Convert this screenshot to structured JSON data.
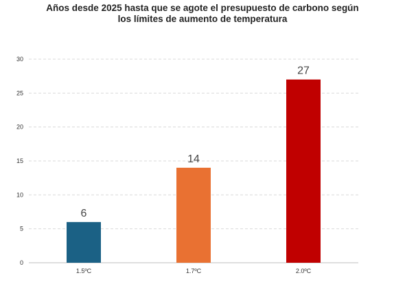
{
  "chart_data": {
    "type": "bar",
    "title_lines": [
      "Años desde 2025 hasta que se agote el presupuesto de carbono según",
      "los límites de aumento de temperatura"
    ],
    "categories": [
      "1.5ºC",
      "1.7ºC",
      "2.0ºC"
    ],
    "values": [
      6,
      14,
      27
    ],
    "data_labels": [
      "6",
      "14",
      "27"
    ],
    "colors": [
      "#1b6185",
      "#e97132",
      "#c00000"
    ],
    "xlabel": "",
    "ylabel": "",
    "ylim": [
      0,
      30
    ],
    "yticks": [
      0,
      5,
      10,
      15,
      20,
      25,
      30
    ],
    "ytick_labels": [
      "0",
      "5",
      "10",
      "15",
      "20",
      "25",
      "30"
    ],
    "grid": true,
    "legend": "none"
  }
}
